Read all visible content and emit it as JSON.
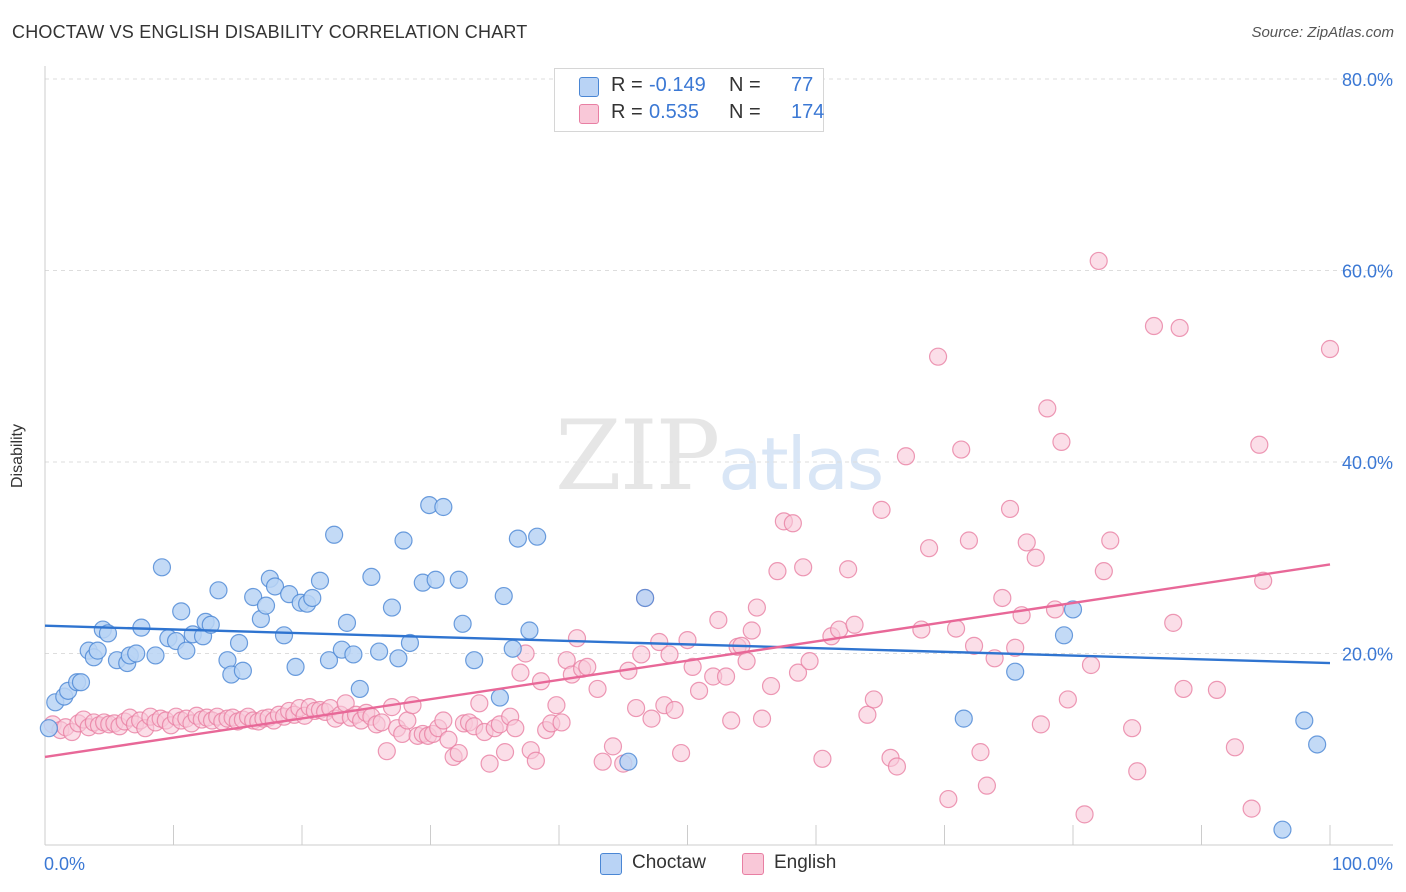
{
  "title": "CHOCTAW VS ENGLISH DISABILITY CORRELATION CHART",
  "source": "Source: ZipAtlas.com",
  "watermark": {
    "zip": "ZIP",
    "atlas": "atlas"
  },
  "colors": {
    "choctaw_fill": "#b9d3f5",
    "choctaw_stroke": "#4a86d4",
    "choctaw_line": "#2f74d0",
    "english_fill": "#f9c8d8",
    "english_stroke": "#e87fa3",
    "english_line": "#e86898",
    "tick_text": "#3b78d4",
    "grid": "#dddddd"
  },
  "legend": {
    "rows": [
      {
        "r_label": "R =",
        "r_value": "-0.149",
        "n_label": "N =",
        "n_value": "77"
      },
      {
        "r_label": "R =",
        "r_value": "0.535",
        "n_label": "N =",
        "n_value": "174"
      }
    ]
  },
  "chart_data": {
    "type": "scatter",
    "title": "CHOCTAW VS ENGLISH DISABILITY CORRELATION CHART",
    "xlabel": "",
    "ylabel": "Disability",
    "xlim": [
      0,
      100
    ],
    "ylim": [
      0,
      80
    ],
    "x_tick_labels": [
      "0.0%",
      "100.0%"
    ],
    "y_ticks": [
      20,
      40,
      60,
      80
    ],
    "y_tick_labels": [
      "20.0%",
      "40.0%",
      "60.0%",
      "80.0%"
    ],
    "grid": "horizontal dashed",
    "legend_position": "bottom-center",
    "series": [
      {
        "name": "Choctaw",
        "r": -0.149,
        "n": 77,
        "trend": {
          "x": [
            0,
            100
          ],
          "y": [
            22.9,
            19.0
          ]
        },
        "points": [
          [
            0.3,
            12.2
          ],
          [
            0.8,
            14.9
          ],
          [
            1.5,
            15.5
          ],
          [
            1.8,
            16.1
          ],
          [
            2.5,
            17.0
          ],
          [
            2.8,
            17.0
          ],
          [
            3.4,
            20.3
          ],
          [
            3.8,
            19.6
          ],
          [
            4.1,
            20.3
          ],
          [
            4.5,
            22.5
          ],
          [
            4.9,
            22.1
          ],
          [
            5.6,
            19.3
          ],
          [
            6.4,
            19.0
          ],
          [
            6.6,
            19.8
          ],
          [
            7.1,
            20.0
          ],
          [
            7.5,
            22.7
          ],
          [
            8.6,
            19.8
          ],
          [
            9.1,
            29.0
          ],
          [
            9.6,
            21.6
          ],
          [
            10.2,
            21.3
          ],
          [
            10.6,
            24.4
          ],
          [
            11.0,
            20.3
          ],
          [
            11.5,
            22.0
          ],
          [
            12.3,
            21.8
          ],
          [
            12.5,
            23.3
          ],
          [
            12.9,
            23.0
          ],
          [
            13.5,
            26.6
          ],
          [
            14.2,
            19.3
          ],
          [
            14.5,
            17.8
          ],
          [
            15.1,
            21.1
          ],
          [
            15.4,
            18.2
          ],
          [
            16.2,
            25.9
          ],
          [
            16.8,
            23.6
          ],
          [
            17.2,
            25.0
          ],
          [
            17.5,
            27.8
          ],
          [
            17.9,
            27.0
          ],
          [
            18.6,
            21.9
          ],
          [
            19.0,
            26.2
          ],
          [
            19.5,
            18.6
          ],
          [
            19.9,
            25.3
          ],
          [
            20.4,
            25.2
          ],
          [
            20.8,
            25.8
          ],
          [
            21.4,
            27.6
          ],
          [
            22.1,
            19.3
          ],
          [
            22.5,
            32.4
          ],
          [
            23.1,
            20.4
          ],
          [
            23.5,
            23.2
          ],
          [
            24.0,
            19.9
          ],
          [
            24.5,
            16.3
          ],
          [
            25.4,
            28.0
          ],
          [
            26.0,
            20.2
          ],
          [
            27.0,
            24.8
          ],
          [
            27.5,
            19.5
          ],
          [
            27.9,
            31.8
          ],
          [
            28.4,
            21.1
          ],
          [
            29.4,
            27.4
          ],
          [
            29.9,
            35.5
          ],
          [
            30.4,
            27.7
          ],
          [
            31.0,
            35.3
          ],
          [
            32.2,
            27.7
          ],
          [
            32.5,
            23.1
          ],
          [
            33.4,
            19.3
          ],
          [
            35.4,
            15.4
          ],
          [
            35.7,
            26.0
          ],
          [
            36.4,
            20.5
          ],
          [
            36.8,
            32.0
          ],
          [
            37.7,
            22.4
          ],
          [
            38.3,
            32.2
          ],
          [
            45.4,
            8.7
          ],
          [
            46.7,
            25.8
          ],
          [
            71.5,
            13.2
          ],
          [
            75.5,
            18.1
          ],
          [
            79.3,
            21.9
          ],
          [
            80.0,
            24.6
          ],
          [
            96.3,
            1.6
          ],
          [
            98.0,
            13.0
          ],
          [
            99.0,
            10.5
          ]
        ]
      },
      {
        "name": "English",
        "r": 0.535,
        "n": 174,
        "trend": {
          "x": [
            0,
            100
          ],
          "y": [
            9.2,
            29.3
          ]
        },
        "points": [
          [
            0.6,
            12.6
          ],
          [
            1.2,
            12.0
          ],
          [
            1.6,
            12.3
          ],
          [
            2.1,
            11.8
          ],
          [
            2.6,
            12.7
          ],
          [
            3.0,
            13.1
          ],
          [
            3.4,
            12.3
          ],
          [
            3.8,
            12.8
          ],
          [
            4.2,
            12.5
          ],
          [
            4.6,
            12.8
          ],
          [
            5.0,
            12.6
          ],
          [
            5.4,
            12.7
          ],
          [
            5.8,
            12.4
          ],
          [
            6.2,
            12.9
          ],
          [
            6.6,
            13.3
          ],
          [
            7.0,
            12.6
          ],
          [
            7.4,
            13.0
          ],
          [
            7.8,
            12.2
          ],
          [
            8.2,
            13.4
          ],
          [
            8.6,
            12.8
          ],
          [
            9.0,
            13.2
          ],
          [
            9.4,
            13.0
          ],
          [
            9.8,
            12.5
          ],
          [
            10.2,
            13.4
          ],
          [
            10.6,
            13.0
          ],
          [
            11.0,
            13.2
          ],
          [
            11.4,
            12.7
          ],
          [
            11.8,
            13.5
          ],
          [
            12.2,
            13.1
          ],
          [
            12.6,
            13.3
          ],
          [
            13.0,
            13.0
          ],
          [
            13.4,
            13.4
          ],
          [
            13.8,
            12.9
          ],
          [
            14.2,
            13.2
          ],
          [
            14.6,
            13.3
          ],
          [
            15.0,
            12.9
          ],
          [
            15.4,
            13.1
          ],
          [
            15.8,
            13.4
          ],
          [
            16.2,
            13.0
          ],
          [
            16.6,
            12.9
          ],
          [
            17.0,
            13.2
          ],
          [
            17.4,
            13.3
          ],
          [
            17.8,
            13.0
          ],
          [
            18.2,
            13.6
          ],
          [
            18.6,
            13.4
          ],
          [
            19.0,
            14.0
          ],
          [
            19.4,
            13.6
          ],
          [
            19.8,
            14.3
          ],
          [
            20.2,
            13.5
          ],
          [
            20.6,
            14.4
          ],
          [
            21.0,
            14.0
          ],
          [
            21.4,
            14.1
          ],
          [
            21.8,
            13.9
          ],
          [
            22.2,
            14.3
          ],
          [
            22.6,
            13.2
          ],
          [
            23.0,
            13.6
          ],
          [
            23.4,
            14.8
          ],
          [
            23.8,
            13.3
          ],
          [
            24.2,
            13.6
          ],
          [
            24.6,
            13.0
          ],
          [
            25.0,
            13.8
          ],
          [
            25.4,
            13.4
          ],
          [
            25.8,
            12.6
          ],
          [
            26.2,
            12.8
          ],
          [
            26.6,
            9.8
          ],
          [
            27.0,
            14.4
          ],
          [
            27.4,
            12.2
          ],
          [
            27.8,
            11.6
          ],
          [
            28.2,
            13.0
          ],
          [
            28.6,
            14.6
          ],
          [
            29.0,
            11.4
          ],
          [
            29.4,
            11.6
          ],
          [
            29.8,
            11.4
          ],
          [
            30.2,
            11.6
          ],
          [
            30.6,
            12.2
          ],
          [
            31.0,
            13.0
          ],
          [
            31.4,
            11.0
          ],
          [
            31.8,
            9.2
          ],
          [
            32.2,
            9.6
          ],
          [
            32.6,
            12.7
          ],
          [
            33.0,
            12.8
          ],
          [
            33.4,
            12.4
          ],
          [
            33.8,
            14.8
          ],
          [
            34.2,
            11.8
          ],
          [
            34.6,
            8.5
          ],
          [
            35.0,
            12.2
          ],
          [
            35.4,
            12.6
          ],
          [
            35.8,
            9.7
          ],
          [
            36.2,
            13.4
          ],
          [
            36.6,
            12.2
          ],
          [
            37.0,
            18.0
          ],
          [
            37.4,
            20.0
          ],
          [
            37.8,
            9.9
          ],
          [
            38.2,
            8.8
          ],
          [
            38.6,
            17.1
          ],
          [
            39.0,
            12.0
          ],
          [
            39.4,
            12.7
          ],
          [
            39.8,
            14.6
          ],
          [
            40.2,
            12.8
          ],
          [
            40.6,
            19.3
          ],
          [
            41.0,
            17.8
          ],
          [
            41.4,
            21.6
          ],
          [
            41.8,
            18.4
          ],
          [
            42.2,
            18.6
          ],
          [
            43.0,
            16.3
          ],
          [
            43.4,
            8.7
          ],
          [
            44.2,
            10.3
          ],
          [
            45.0,
            8.5
          ],
          [
            45.4,
            18.2
          ],
          [
            46.0,
            14.3
          ],
          [
            46.4,
            19.9
          ],
          [
            46.7,
            25.8
          ],
          [
            47.2,
            13.2
          ],
          [
            47.8,
            21.2
          ],
          [
            48.2,
            14.6
          ],
          [
            48.6,
            19.9
          ],
          [
            49.0,
            14.1
          ],
          [
            49.5,
            9.6
          ],
          [
            50.0,
            21.4
          ],
          [
            50.4,
            18.6
          ],
          [
            50.9,
            16.1
          ],
          [
            52.0,
            17.6
          ],
          [
            52.4,
            23.5
          ],
          [
            53.0,
            17.6
          ],
          [
            53.4,
            13.0
          ],
          [
            53.9,
            20.7
          ],
          [
            54.2,
            20.8
          ],
          [
            54.6,
            19.2
          ],
          [
            55.0,
            22.4
          ],
          [
            55.4,
            24.8
          ],
          [
            55.8,
            13.2
          ],
          [
            56.5,
            16.6
          ],
          [
            57.0,
            28.6
          ],
          [
            57.5,
            33.8
          ],
          [
            58.2,
            33.6
          ],
          [
            58.6,
            18.0
          ],
          [
            59.0,
            29.0
          ],
          [
            59.5,
            19.2
          ],
          [
            60.5,
            9.0
          ],
          [
            61.2,
            21.8
          ],
          [
            61.8,
            22.5
          ],
          [
            62.5,
            28.8
          ],
          [
            63.0,
            23.0
          ],
          [
            64.0,
            13.6
          ],
          [
            64.5,
            15.2
          ],
          [
            65.1,
            35.0
          ],
          [
            65.8,
            9.1
          ],
          [
            66.3,
            8.2
          ],
          [
            67.0,
            40.6
          ],
          [
            68.2,
            22.5
          ],
          [
            68.8,
            31.0
          ],
          [
            69.5,
            51.0
          ],
          [
            70.3,
            4.8
          ],
          [
            70.9,
            22.6
          ],
          [
            71.3,
            41.3
          ],
          [
            71.9,
            31.8
          ],
          [
            72.3,
            20.8
          ],
          [
            72.8,
            9.7
          ],
          [
            73.3,
            6.2
          ],
          [
            73.9,
            19.5
          ],
          [
            74.5,
            25.8
          ],
          [
            75.1,
            35.1
          ],
          [
            75.5,
            20.6
          ],
          [
            76.0,
            24.0
          ],
          [
            76.4,
            31.6
          ],
          [
            77.1,
            30.0
          ],
          [
            77.5,
            12.6
          ],
          [
            78.0,
            45.6
          ],
          [
            78.6,
            24.6
          ],
          [
            79.1,
            42.1
          ],
          [
            79.6,
            15.2
          ],
          [
            80.9,
            3.2
          ],
          [
            81.4,
            18.8
          ],
          [
            82.0,
            61.0
          ],
          [
            82.4,
            28.6
          ],
          [
            82.9,
            31.8
          ],
          [
            84.6,
            12.2
          ],
          [
            85.0,
            7.7
          ],
          [
            86.3,
            54.2
          ],
          [
            87.8,
            23.2
          ],
          [
            88.3,
            54.0
          ],
          [
            88.6,
            16.3
          ],
          [
            91.2,
            16.2
          ],
          [
            92.6,
            10.2
          ],
          [
            93.9,
            3.8
          ],
          [
            94.5,
            41.8
          ],
          [
            94.8,
            27.6
          ],
          [
            100.0,
            51.8
          ]
        ]
      }
    ]
  },
  "bottom_legend": [
    {
      "label": "Choctaw"
    },
    {
      "label": "English"
    }
  ]
}
